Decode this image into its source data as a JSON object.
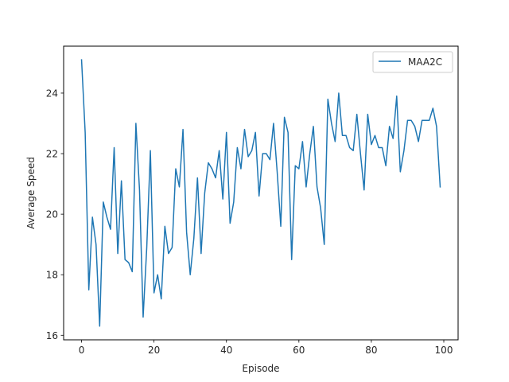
{
  "chart_data": {
    "type": "line",
    "title": "",
    "xlabel": "Episode",
    "ylabel": "Average Speed",
    "xlim": [
      -4.95,
      103.95
    ],
    "ylim": [
      15.85,
      25.55
    ],
    "xticks": [
      0,
      20,
      40,
      60,
      80,
      100
    ],
    "yticks": [
      16,
      18,
      20,
      22,
      24
    ],
    "grid": false,
    "legend": {
      "position": "top-right"
    },
    "series": [
      {
        "name": "MAA2C",
        "color": "#1f77b4",
        "x": [
          0,
          1,
          2,
          3,
          4,
          5,
          6,
          7,
          8,
          9,
          10,
          11,
          12,
          13,
          14,
          15,
          16,
          17,
          18,
          19,
          20,
          21,
          22,
          23,
          24,
          25,
          26,
          27,
          28,
          29,
          30,
          31,
          32,
          33,
          34,
          35,
          36,
          37,
          38,
          39,
          40,
          41,
          42,
          43,
          44,
          45,
          46,
          47,
          48,
          49,
          50,
          51,
          52,
          53,
          54,
          55,
          56,
          57,
          58,
          59,
          60,
          61,
          62,
          63,
          64,
          65,
          66,
          67,
          68,
          69,
          70,
          71,
          72,
          73,
          74,
          75,
          76,
          77,
          78,
          79,
          80,
          81,
          82,
          83,
          84,
          85,
          86,
          87,
          88,
          89,
          90,
          91,
          92,
          93,
          94,
          95,
          96,
          97,
          98,
          99
        ],
        "values": [
          25.1,
          22.7,
          17.5,
          19.9,
          19.0,
          16.3,
          20.4,
          19.9,
          19.5,
          22.2,
          18.7,
          21.1,
          18.5,
          18.4,
          18.1,
          23.0,
          20.8,
          16.6,
          18.9,
          22.1,
          17.4,
          18.0,
          17.2,
          19.6,
          18.7,
          18.9,
          21.5,
          20.9,
          22.8,
          19.4,
          18.0,
          19.2,
          21.2,
          18.7,
          20.7,
          21.7,
          21.5,
          21.2,
          22.1,
          20.5,
          22.7,
          19.7,
          20.4,
          22.2,
          21.5,
          22.8,
          21.9,
          22.1,
          22.7,
          20.6,
          22.0,
          22.0,
          21.8,
          23.0,
          21.4,
          19.6,
          23.2,
          22.7,
          18.5,
          21.6,
          21.5,
          22.4,
          20.9,
          22.0,
          22.9,
          20.9,
          20.2,
          19.0,
          23.8,
          23.0,
          22.4,
          24.0,
          22.6,
          22.6,
          22.2,
          22.1,
          23.3,
          22.0,
          20.8,
          23.3,
          22.3,
          22.6,
          22.2,
          22.2,
          21.6,
          22.9,
          22.5,
          23.9,
          21.4,
          22.1,
          23.1,
          23.1,
          22.9,
          22.4,
          23.1,
          23.1,
          23.1,
          23.5,
          22.9,
          20.9
        ]
      }
    ]
  }
}
